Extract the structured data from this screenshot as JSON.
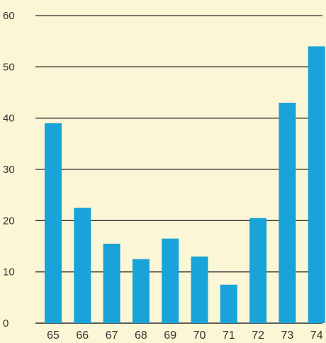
{
  "chart_data": {
    "type": "bar",
    "title": "",
    "xlabel": "",
    "ylabel": "",
    "categories": [
      "65",
      "66",
      "67",
      "68",
      "69",
      "70",
      "71",
      "72",
      "73",
      "74"
    ],
    "values": [
      39,
      22.5,
      15.5,
      12.5,
      16.5,
      13,
      7.5,
      20.5,
      43,
      54
    ],
    "ylim": [
      0,
      60
    ],
    "yticks": [
      "0",
      "10",
      "20",
      "30",
      "40",
      "50",
      "60"
    ],
    "grid": true,
    "legend": "none",
    "colors": {
      "bar": "#1aa3d9",
      "grid": "#2b2b2b",
      "background": "#fbf6d6"
    }
  }
}
